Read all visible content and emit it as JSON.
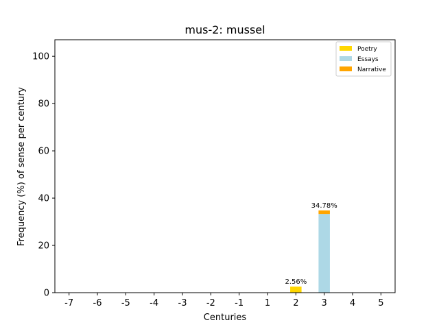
{
  "chart_data": {
    "type": "bar",
    "stacked": true,
    "title": "mus-2: mussel",
    "xlabel": "Centuries",
    "ylabel": "Frequency (%) of sense per century",
    "categories": [
      "-7",
      "-6",
      "-5",
      "-4",
      "-3",
      "-2",
      "-1",
      "1",
      "2",
      "3",
      "4",
      "5"
    ],
    "ylim": [
      0,
      107
    ],
    "yticks": [
      0,
      20,
      40,
      60,
      80,
      100
    ],
    "grid": false,
    "legend_position": "top-right",
    "series": [
      {
        "name": "Poetry",
        "color": "#ffd700",
        "values": [
          0,
          0,
          0,
          0,
          0,
          0,
          0,
          0,
          2.56,
          0,
          0,
          0
        ]
      },
      {
        "name": "Essays",
        "color": "#add8e6",
        "values": [
          0,
          0,
          0,
          0,
          0,
          0,
          0,
          0,
          0,
          33.3,
          0,
          0
        ]
      },
      {
        "name": "Narrative",
        "color": "#ffa500",
        "values": [
          0,
          0,
          0,
          0,
          0,
          0,
          0,
          0,
          0,
          1.48,
          0,
          0
        ]
      }
    ],
    "bar_labels": [
      {
        "category": "2",
        "text": "2.56%"
      },
      {
        "category": "3",
        "text": "34.78%"
      }
    ]
  }
}
